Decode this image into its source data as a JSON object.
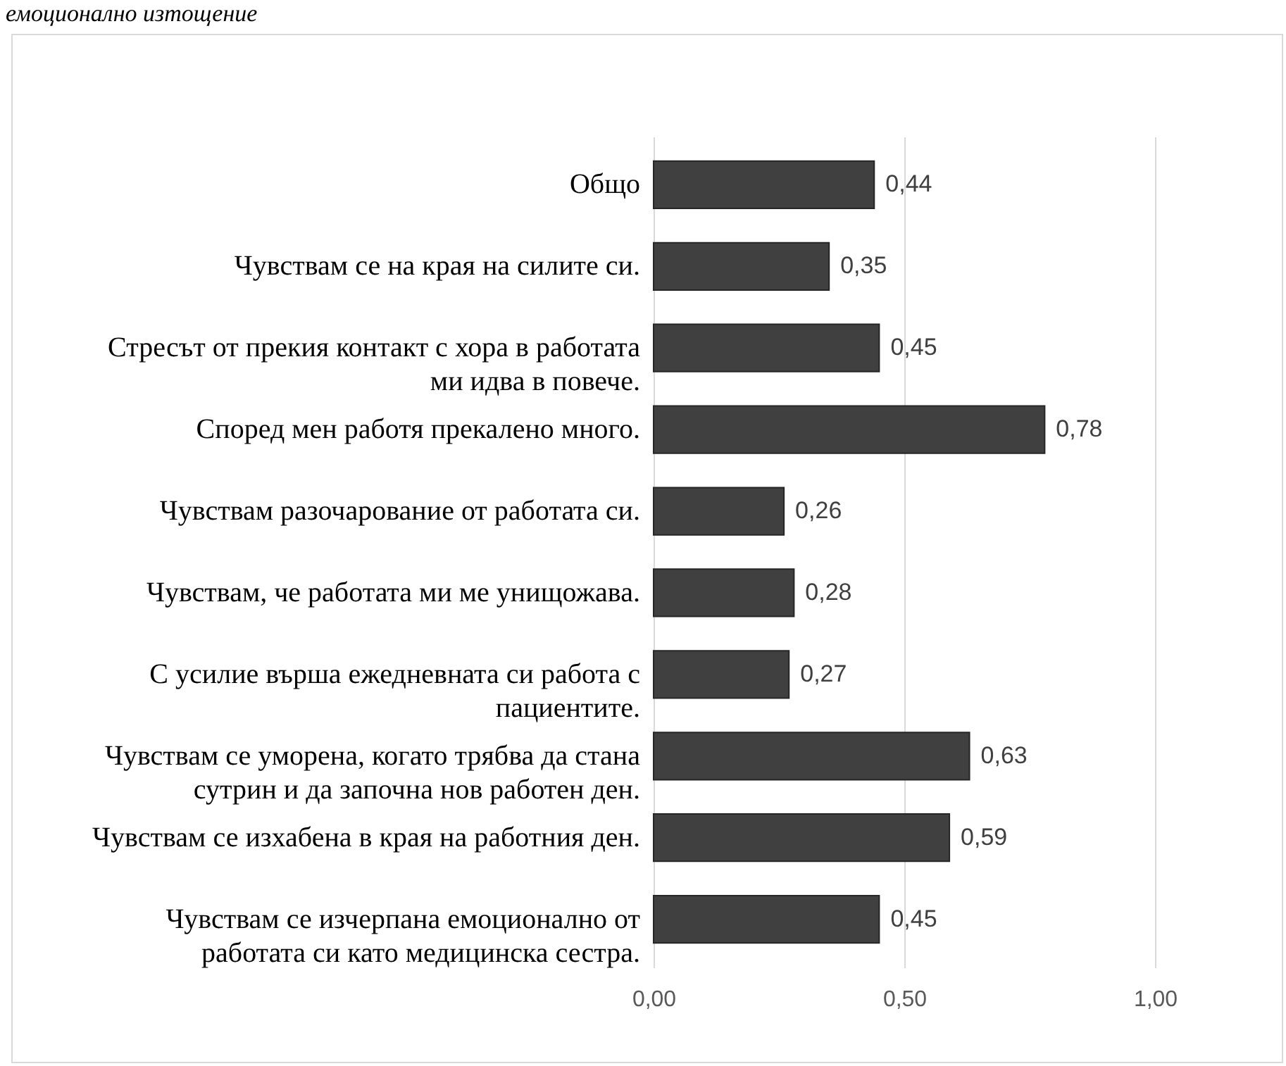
{
  "chart_data": {
    "type": "bar",
    "orientation": "horizontal",
    "title": "емоционално изтощение",
    "categories": [
      "Общо",
      "Чувствам се на края на силите си.",
      "Стресът от прекия контакт с хора в работата ми идва в повече.",
      "Според мен работя прекалено много.",
      "Чувствам разочарование от работата си.",
      "Чувствам, че работата ми ме унищожава.",
      "С усилие върша ежедневната си работа с пациентите.",
      "Чувствам се уморена, когато трябва да стана сутрин и да започна нов работен ден.",
      "Чувствам се изхабена в края на работния ден.",
      "Чувствам се изчерпана емоционално от работата си като медицинска сестра."
    ],
    "values": [
      0.44,
      0.35,
      0.45,
      0.78,
      0.26,
      0.28,
      0.27,
      0.63,
      0.59,
      0.45
    ],
    "value_labels": [
      "0,44",
      "0,35",
      "0,45",
      "0,78",
      "0,26",
      "0,28",
      "0,27",
      "0,63",
      "0,59",
      "0,45"
    ],
    "color": "#404040",
    "xlim": [
      0,
      1
    ],
    "xticks": [
      {
        "value": 0,
        "label": "0,00"
      },
      {
        "value": 0.5,
        "label": "0,50"
      },
      {
        "value": 1,
        "label": "1,00"
      }
    ],
    "grid": "x"
  }
}
